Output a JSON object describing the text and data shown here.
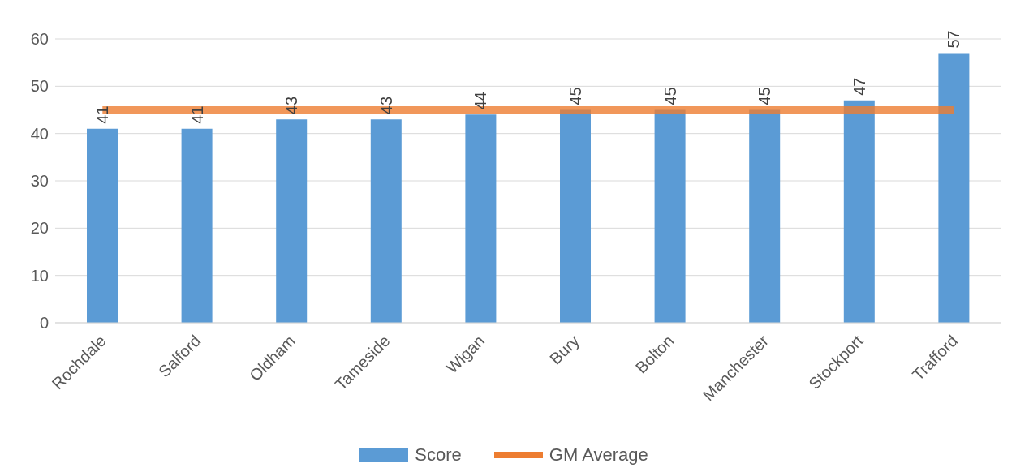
{
  "chart_data": {
    "type": "bar",
    "categories": [
      "Rochdale",
      "Salford",
      "Oldham",
      "Tameside",
      "Wigan",
      "Bury",
      "Bolton",
      "Manchester",
      "Stockport",
      "Trafford"
    ],
    "series": [
      {
        "name": "Score",
        "color": "#5b9bd5",
        "values": [
          41,
          41,
          43,
          43,
          44,
          45,
          45,
          45,
          47,
          57
        ],
        "value_labels": [
          "41",
          "41",
          "43",
          "43",
          "44",
          "45",
          "45",
          "45",
          "47",
          "57"
        ]
      },
      {
        "name": "GM Average",
        "type": "line",
        "color": "#ed7d31",
        "values": [
          45,
          45,
          45,
          45,
          45,
          45,
          45,
          45,
          45,
          45
        ]
      }
    ],
    "ylim": [
      0,
      60
    ],
    "yticks": [
      0,
      10,
      20,
      30,
      40,
      50,
      60
    ],
    "grid": "y",
    "legend": "bottom",
    "marker": "none",
    "line_style": "solid"
  }
}
